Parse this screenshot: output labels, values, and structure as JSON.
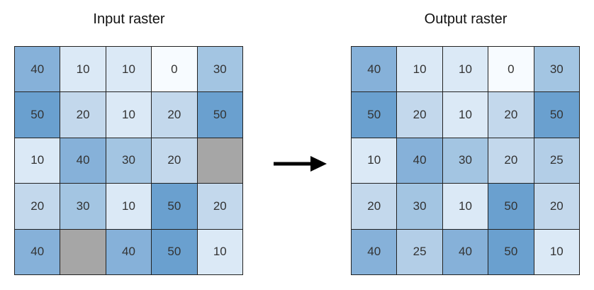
{
  "input": {
    "title": "Input raster",
    "cells": [
      [
        "40",
        "10",
        "10",
        "0",
        "30"
      ],
      [
        "50",
        "20",
        "10",
        "20",
        "50"
      ],
      [
        "10",
        "40",
        "30",
        "20",
        ""
      ],
      [
        "20",
        "30",
        "10",
        "50",
        "20"
      ],
      [
        "40",
        "",
        "40",
        "50",
        "10"
      ]
    ]
  },
  "output": {
    "title": "Output raster",
    "cells": [
      [
        "40",
        "10",
        "10",
        "0",
        "30"
      ],
      [
        "50",
        "20",
        "10",
        "20",
        "50"
      ],
      [
        "10",
        "40",
        "30",
        "20",
        "25"
      ],
      [
        "20",
        "30",
        "10",
        "50",
        "20"
      ],
      [
        "40",
        "25",
        "40",
        "50",
        "10"
      ]
    ]
  },
  "colors": {
    "0": "#f7fbff",
    "10": "#dbe9f6",
    "20": "#c3d8ec",
    "25": "#b3cee7",
    "30": "#a3c5e2",
    "40": "#86b1d9",
    "50": "#6aa0cf",
    "nodata": "#a6a6a6"
  },
  "arrow_icon": "arrow-right-icon"
}
